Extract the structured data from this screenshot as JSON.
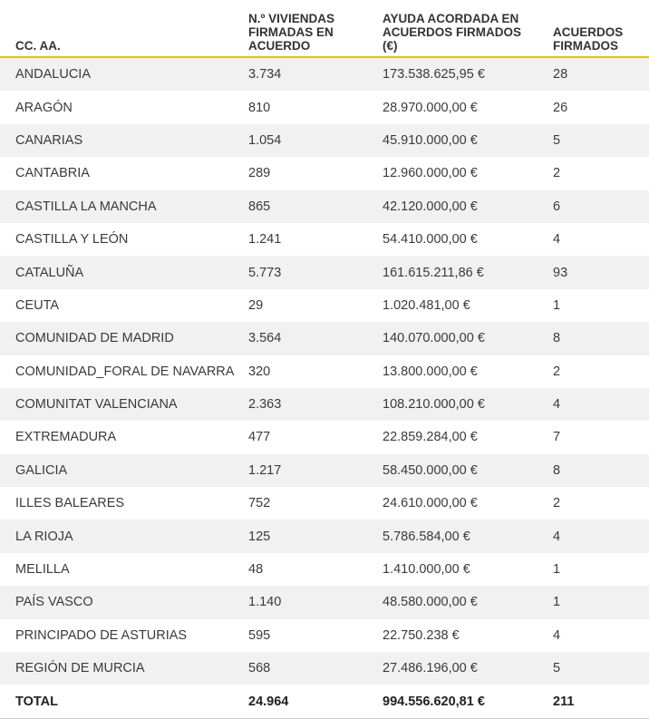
{
  "header": {
    "col1": "CC. AA.",
    "col2": "N.º VIVIENDAS FIRMADAS EN ACUERDO",
    "col3": "AYUDA ACORDADA EN ACUERDOS FIRMADOS (€)",
    "col4": "ACUERDOS FIRMADOS"
  },
  "rows": [
    {
      "region": "ANDALUCIA",
      "viviendas": "3.734",
      "ayuda": "173.538.625,95 €",
      "acuerdos": "28"
    },
    {
      "region": "ARAGÓN",
      "viviendas": "810",
      "ayuda": "28.970.000,00 €",
      "acuerdos": "26"
    },
    {
      "region": "CANARIAS",
      "viviendas": "1.054",
      "ayuda": "45.910.000,00 €",
      "acuerdos": "5"
    },
    {
      "region": "CANTABRIA",
      "viviendas": "289",
      "ayuda": "12.960.000,00 €",
      "acuerdos": "2"
    },
    {
      "region": "CASTILLA LA MANCHA",
      "viviendas": "865",
      "ayuda": "42.120.000,00 €",
      "acuerdos": "6"
    },
    {
      "region": "CASTILLA Y LEÓN",
      "viviendas": "1.241",
      "ayuda": "54.410.000,00 €",
      "acuerdos": "4"
    },
    {
      "region": "CATALUÑA",
      "viviendas": "5.773",
      "ayuda": "161.615.211,86 €",
      "acuerdos": "93"
    },
    {
      "region": "CEUTA",
      "viviendas": "29",
      "ayuda": "1.020.481,00 €",
      "acuerdos": "1"
    },
    {
      "region": "COMUNIDAD DE MADRID",
      "viviendas": "3.564",
      "ayuda": "140.070.000,00 €",
      "acuerdos": "8"
    },
    {
      "region": "COMUNIDAD_FORAL DE NAVARRA",
      "viviendas": "320",
      "ayuda": "13.800.000,00 €",
      "acuerdos": "2"
    },
    {
      "region": "COMUNITAT VALENCIANA",
      "viviendas": "2.363",
      "ayuda": "108.210.000,00 €",
      "acuerdos": "4"
    },
    {
      "region": "EXTREMADURA",
      "viviendas": "477",
      "ayuda": "22.859.284,00 €",
      "acuerdos": "7"
    },
    {
      "region": "GALICIA",
      "viviendas": "1.217",
      "ayuda": "58.450.000,00 €",
      "acuerdos": "8"
    },
    {
      "region": "ILLES BALEARES",
      "viviendas": "752",
      "ayuda": "24.610.000,00 €",
      "acuerdos": "2"
    },
    {
      "region": "LA RIOJA",
      "viviendas": "125",
      "ayuda": "5.786.584,00 €",
      "acuerdos": "4"
    },
    {
      "region": "MELILLA",
      "viviendas": "48",
      "ayuda": "1.410.000,00 €",
      "acuerdos": "1"
    },
    {
      "region": "PAÍS VASCO",
      "viviendas": "1.140",
      "ayuda": "48.580.000,00 €",
      "acuerdos": "1"
    },
    {
      "region": "PRINCIPADO DE ASTURIAS",
      "viviendas": "595",
      "ayuda": "22.750.238 €",
      "acuerdos": "4"
    },
    {
      "region": "REGIÓN DE MURCIA",
      "viviendas": "568",
      "ayuda": "27.486.196,00 €",
      "acuerdos": "5"
    }
  ],
  "total": {
    "label": "TOTAL",
    "viviendas": "24.964",
    "ayuda": "994.556.620,81 €",
    "acuerdos": "211"
  },
  "colors": {
    "header_rule": "#e8c400",
    "row_stripe": "#f1f1f1"
  }
}
